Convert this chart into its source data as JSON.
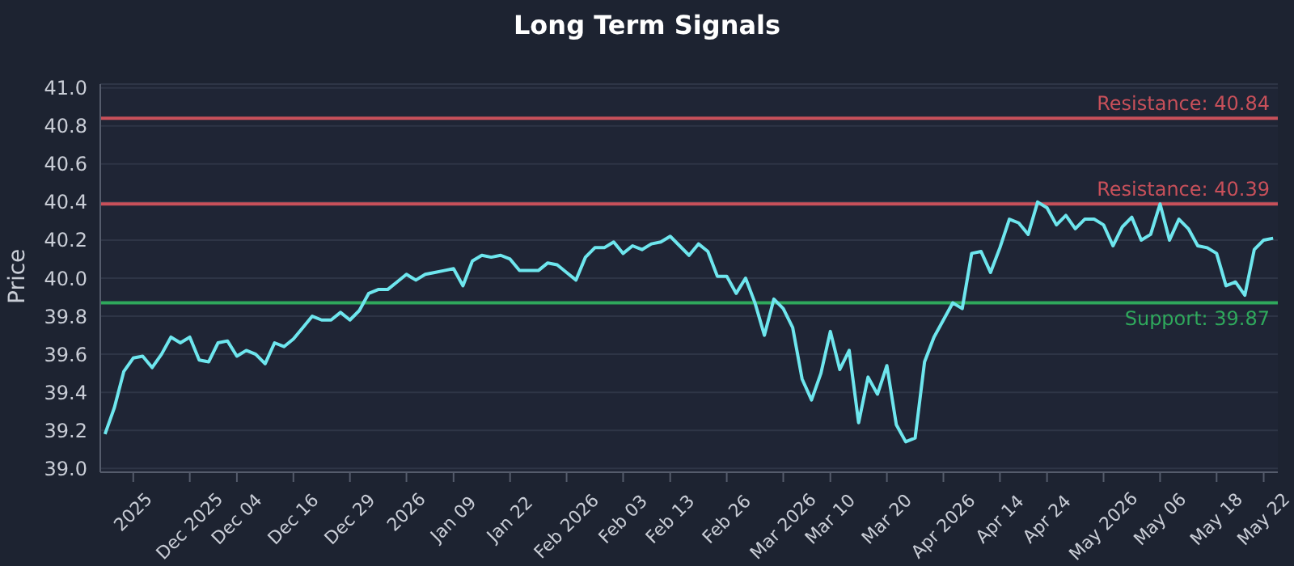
{
  "chart_data": {
    "type": "line",
    "title": "Long Term Signals",
    "ylabel": "Price",
    "categories": [
      null,
      null,
      null,
      "2025",
      null,
      null,
      null,
      null,
      null,
      "Dec 2025",
      null,
      null,
      null,
      null,
      "Dec 04",
      null,
      null,
      null,
      null,
      null,
      "Dec 16",
      null,
      null,
      null,
      null,
      null,
      "Dec 29",
      null,
      null,
      null,
      null,
      null,
      "2026",
      null,
      null,
      null,
      null,
      "Jan 09",
      null,
      null,
      null,
      null,
      null,
      "Jan 22",
      null,
      null,
      null,
      null,
      null,
      "Feb 2026",
      null,
      null,
      null,
      null,
      null,
      "Feb 03",
      null,
      null,
      null,
      null,
      "Feb 13",
      null,
      null,
      null,
      null,
      null,
      "Feb 26",
      null,
      null,
      null,
      null,
      null,
      "Mar 2026",
      null,
      null,
      null,
      null,
      "Mar 10",
      null,
      null,
      null,
      null,
      null,
      "Mar 20",
      null,
      null,
      null,
      null,
      null,
      "Apr 2026",
      null,
      null,
      null,
      null,
      null,
      "Apr 14",
      null,
      null,
      null,
      null,
      "Apr 24",
      null,
      null,
      null,
      null,
      null,
      "May 2026",
      null,
      null,
      null,
      null,
      null,
      "May 06",
      null,
      null,
      null,
      null,
      null,
      "May 18",
      null,
      null,
      null,
      null,
      "May 22",
      null
    ],
    "series": [
      {
        "color": "#6ee6ee",
        "values": [
          39.18,
          39.32,
          39.51,
          39.58,
          39.59,
          39.53,
          39.6,
          39.69,
          39.66,
          39.69,
          39.57,
          39.56,
          39.66,
          39.67,
          39.59,
          39.62,
          39.6,
          39.55,
          39.66,
          39.64,
          39.68,
          39.74,
          39.8,
          39.78,
          39.78,
          39.82,
          39.78,
          39.83,
          39.92,
          39.94,
          39.94,
          39.98,
          40.02,
          39.99,
          40.02,
          40.03,
          40.04,
          40.05,
          39.96,
          40.09,
          40.12,
          40.11,
          40.12,
          40.1,
          40.04,
          40.04,
          40.04,
          40.08,
          40.07,
          40.03,
          39.99,
          40.11,
          40.16,
          40.16,
          40.19,
          40.13,
          40.17,
          40.15,
          40.18,
          40.19,
          40.22,
          40.17,
          40.12,
          40.18,
          40.14,
          40.01,
          40.01,
          39.92,
          40.0,
          39.87,
          39.7,
          39.89,
          39.84,
          39.74,
          39.47,
          39.36,
          39.5,
          39.72,
          39.52,
          39.62,
          39.24,
          39.48,
          39.39,
          39.54,
          39.23,
          39.14,
          39.16,
          39.56,
          39.69,
          39.78,
          39.87,
          39.84,
          40.13,
          40.14,
          40.03,
          40.16,
          40.31,
          40.29,
          40.23,
          40.4,
          40.37,
          40.28,
          40.33,
          40.26,
          40.31,
          40.31,
          40.28,
          40.17,
          40.27,
          40.32,
          40.2,
          40.23,
          40.39,
          40.2,
          40.31,
          40.26,
          40.17,
          40.16,
          40.13,
          39.96,
          39.98,
          39.91,
          40.15,
          40.2,
          40.21
        ]
      }
    ],
    "ylim": [
      38.98,
      41.02
    ],
    "yticks": [
      {
        "value": 39,
        "label": "39.0"
      },
      39.2,
      39.4,
      39.6,
      39.8,
      {
        "value": 40,
        "label": "40.0"
      },
      40.2,
      40.4,
      40.6,
      40.8,
      {
        "value": 41,
        "label": "41.0"
      }
    ],
    "grid": "y",
    "line_style": "solid",
    "marker": "none",
    "ref_lines": [
      {
        "axis": "y",
        "value": 40.84,
        "label": "Resistance: 40.84",
        "color": "#c8505a"
      },
      {
        "axis": "y",
        "value": 40.39,
        "label": "Resistance: 40.39",
        "color": "#c8505a"
      },
      {
        "axis": "y",
        "value": 39.87,
        "label": "Support: 39.87",
        "color": "#2fa85c"
      }
    ]
  }
}
